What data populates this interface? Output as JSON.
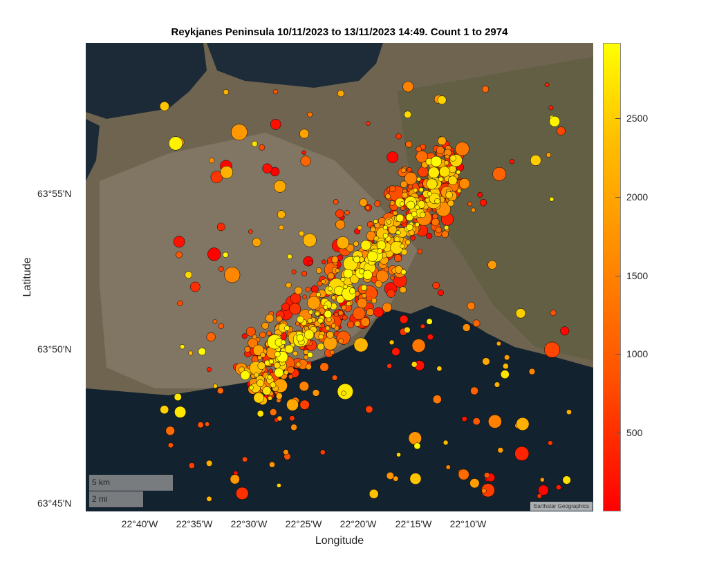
{
  "title": "Reykjanes Peninsula 10/11/2023 to 13/11/2023 14:49.  Count 1 to 2974",
  "xlabel": "Longitude",
  "ylabel": "Latitude",
  "attribution": "Earthstar Geographics",
  "scalebar": {
    "km": "5 km",
    "mi": "2 mi"
  },
  "chart_data": {
    "type": "scatter",
    "title": "Reykjanes Peninsula 10/11/2023 to 13/11/2023 14:49.  Count 1 to 2974",
    "xlabel": "Longitude",
    "ylabel": "Latitude",
    "xticks": [
      "22°40'W",
      "22°35'W",
      "22°30'W",
      "22°25'W",
      "22°20'W",
      "22°15'W",
      "22°10'W"
    ],
    "yticks": [
      "63°55'N",
      "63°50'N",
      "63°45'N"
    ],
    "xlim_minutes_west": [
      44.9,
      0
    ],
    "count_range": [
      1,
      2974
    ],
    "colorbar": {
      "ticks": [
        "500",
        "1000",
        "1500",
        "2000",
        "2500"
      ],
      "range": [
        1,
        2974
      ],
      "colors": [
        "#ff0000",
        "#ffff00"
      ]
    },
    "trend": {
      "start": {
        "lon": -22.5,
        "lat": 63.81
      },
      "end": {
        "lon": -22.28,
        "lat": 63.945
      }
    }
  }
}
